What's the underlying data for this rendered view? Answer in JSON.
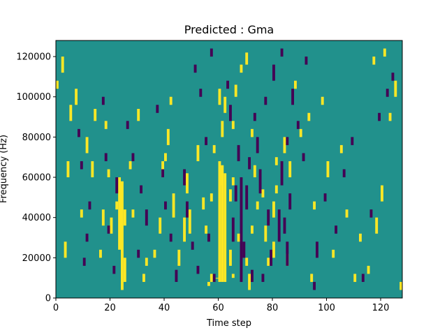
{
  "chart_data": {
    "type": "heatmap",
    "title": "Predicted : Gma",
    "xlabel": "Time step",
    "ylabel": "Frequency (Hz)",
    "xlim": [
      0,
      128
    ],
    "ylim": [
      0,
      128000
    ],
    "xticks": [
      0,
      20,
      40,
      60,
      80,
      100,
      120
    ],
    "xtick_labels": [
      "0",
      "20",
      "40",
      "60",
      "80",
      "100",
      "120"
    ],
    "yticks": [
      0,
      20000,
      40000,
      60000,
      80000,
      100000,
      120000
    ],
    "ytick_labels": [
      "0",
      "20000",
      "40000",
      "60000",
      "80000",
      "100000",
      "120000"
    ],
    "grid": false,
    "colors": {
      "background": "#21918c",
      "high": "#fde725",
      "low": "#440154"
    },
    "n_time_steps": 128,
    "n_frequency_bins": 64,
    "cell_freq_hz": 2000,
    "yellow_cells": [
      [
        60,
        4,
        33
      ],
      [
        61,
        4,
        33
      ],
      [
        62,
        4,
        31
      ],
      [
        59,
        5,
        5
      ],
      [
        60,
        28,
        34
      ],
      [
        64,
        24,
        27
      ],
      [
        65,
        5,
        6
      ],
      [
        65,
        28,
        30
      ],
      [
        64,
        8,
        12
      ],
      [
        56,
        3,
        4
      ],
      [
        57,
        4,
        6
      ],
      [
        23,
        12,
        30
      ],
      [
        24,
        2,
        29
      ],
      [
        25,
        4,
        10
      ],
      [
        22,
        22,
        24
      ],
      [
        25,
        18,
        22
      ],
      [
        48,
        26,
        31
      ],
      [
        47,
        14,
        20
      ],
      [
        49,
        16,
        22
      ],
      [
        45,
        8,
        12
      ],
      [
        43,
        20,
        26
      ],
      [
        70,
        8,
        10
      ],
      [
        71,
        2,
        6
      ],
      [
        72,
        16,
        18
      ],
      [
        73,
        30,
        33
      ],
      [
        74,
        22,
        24
      ],
      [
        77,
        14,
        18
      ],
      [
        78,
        8,
        10
      ],
      [
        80,
        10,
        14
      ],
      [
        80,
        20,
        24
      ],
      [
        81,
        26,
        28
      ],
      [
        81,
        33,
        35
      ],
      [
        76,
        25,
        27
      ],
      [
        85,
        8,
        11
      ],
      [
        86,
        30,
        34
      ],
      [
        84,
        36,
        40
      ],
      [
        38,
        16,
        20
      ],
      [
        39,
        30,
        34
      ],
      [
        40,
        34,
        36
      ],
      [
        41,
        38,
        42
      ],
      [
        42,
        48,
        50
      ],
      [
        16,
        10,
        12
      ],
      [
        17,
        18,
        22
      ],
      [
        18,
        42,
        44
      ],
      [
        20,
        16,
        20
      ],
      [
        19,
        30,
        32
      ],
      [
        61,
        40,
        44
      ],
      [
        60,
        48,
        52
      ],
      [
        62,
        46,
        50
      ],
      [
        65,
        42,
        44
      ],
      [
        32,
        4,
        6
      ],
      [
        33,
        8,
        10
      ],
      [
        36,
        10,
        12
      ],
      [
        30,
        44,
        47
      ],
      [
        28,
        20,
        22
      ],
      [
        27,
        32,
        34
      ],
      [
        14,
        44,
        47
      ],
      [
        13,
        30,
        34
      ],
      [
        11,
        36,
        40
      ],
      [
        9,
        20,
        22
      ],
      [
        7,
        48,
        52
      ],
      [
        3,
        10,
        14
      ],
      [
        4,
        30,
        34
      ],
      [
        5,
        44,
        48
      ],
      [
        0,
        52,
        54
      ],
      [
        2,
        56,
        60
      ],
      [
        98,
        48,
        50
      ],
      [
        102,
        10,
        12
      ],
      [
        105,
        36,
        38
      ],
      [
        110,
        4,
        6
      ],
      [
        112,
        14,
        16
      ],
      [
        118,
        16,
        20
      ],
      [
        120,
        24,
        28
      ],
      [
        123,
        44,
        46
      ],
      [
        125,
        50,
        54
      ],
      [
        127,
        2,
        4
      ],
      [
        94,
        4,
        6
      ],
      [
        95,
        22,
        24
      ],
      [
        90,
        40,
        42
      ],
      [
        88,
        52,
        54
      ],
      [
        93,
        44,
        46
      ],
      [
        100,
        30,
        34
      ],
      [
        107,
        20,
        22
      ],
      [
        115,
        6,
        8
      ],
      [
        117,
        58,
        60
      ],
      [
        121,
        60,
        62
      ],
      [
        58,
        36,
        38
      ],
      [
        57,
        24,
        26
      ],
      [
        55,
        16,
        18
      ],
      [
        54,
        22,
        25
      ],
      [
        52,
        34,
        38
      ],
      [
        66,
        50,
        53
      ],
      [
        68,
        56,
        58
      ],
      [
        70,
        58,
        61
      ],
      [
        67,
        14,
        16
      ],
      [
        72,
        40,
        42
      ]
    ],
    "purple_cells": [
      [
        68,
        4,
        30
      ],
      [
        69,
        10,
        14
      ],
      [
        70,
        22,
        28
      ],
      [
        71,
        32,
        35
      ],
      [
        72,
        4,
        7
      ],
      [
        82,
        14,
        22
      ],
      [
        83,
        28,
        34
      ],
      [
        84,
        16,
        20
      ],
      [
        85,
        8,
        14
      ],
      [
        86,
        22,
        26
      ],
      [
        79,
        8,
        12
      ],
      [
        78,
        18,
        22
      ],
      [
        76,
        4,
        6
      ],
      [
        75,
        26,
        32
      ],
      [
        74,
        36,
        40
      ],
      [
        65,
        14,
        20
      ],
      [
        66,
        24,
        28
      ],
      [
        67,
        34,
        38
      ],
      [
        64,
        44,
        48
      ],
      [
        63,
        52,
        54
      ],
      [
        47,
        28,
        32
      ],
      [
        48,
        20,
        24
      ],
      [
        50,
        12,
        14
      ],
      [
        52,
        6,
        8
      ],
      [
        55,
        38,
        40
      ],
      [
        44,
        4,
        7
      ],
      [
        42,
        14,
        16
      ],
      [
        40,
        22,
        24
      ],
      [
        39,
        30,
        32
      ],
      [
        37,
        46,
        48
      ],
      [
        33,
        18,
        22
      ],
      [
        31,
        26,
        28
      ],
      [
        30,
        10,
        12
      ],
      [
        28,
        34,
        36
      ],
      [
        26,
        42,
        44
      ],
      [
        22,
        26,
        30
      ],
      [
        21,
        6,
        8
      ],
      [
        19,
        16,
        18
      ],
      [
        18,
        34,
        36
      ],
      [
        17,
        48,
        50
      ],
      [
        12,
        22,
        24
      ],
      [
        11,
        14,
        16
      ],
      [
        10,
        8,
        10
      ],
      [
        9,
        32,
        34
      ],
      [
        8,
        40,
        42
      ],
      [
        96,
        10,
        14
      ],
      [
        99,
        24,
        26
      ],
      [
        103,
        16,
        18
      ],
      [
        106,
        30,
        32
      ],
      [
        109,
        38,
        40
      ],
      [
        113,
        4,
        6
      ],
      [
        116,
        20,
        22
      ],
      [
        119,
        44,
        46
      ],
      [
        122,
        50,
        52
      ],
      [
        124,
        54,
        56
      ],
      [
        91,
        34,
        36
      ],
      [
        89,
        42,
        44
      ],
      [
        87,
        48,
        52
      ],
      [
        92,
        58,
        60
      ],
      [
        95,
        2,
        4
      ],
      [
        58,
        4,
        6
      ],
      [
        57,
        60,
        62
      ],
      [
        56,
        14,
        16
      ],
      [
        53,
        50,
        52
      ],
      [
        51,
        56,
        58
      ],
      [
        73,
        44,
        46
      ],
      [
        77,
        48,
        50
      ],
      [
        80,
        54,
        58
      ],
      [
        83,
        60,
        62
      ],
      [
        85,
        38,
        40
      ]
    ]
  }
}
